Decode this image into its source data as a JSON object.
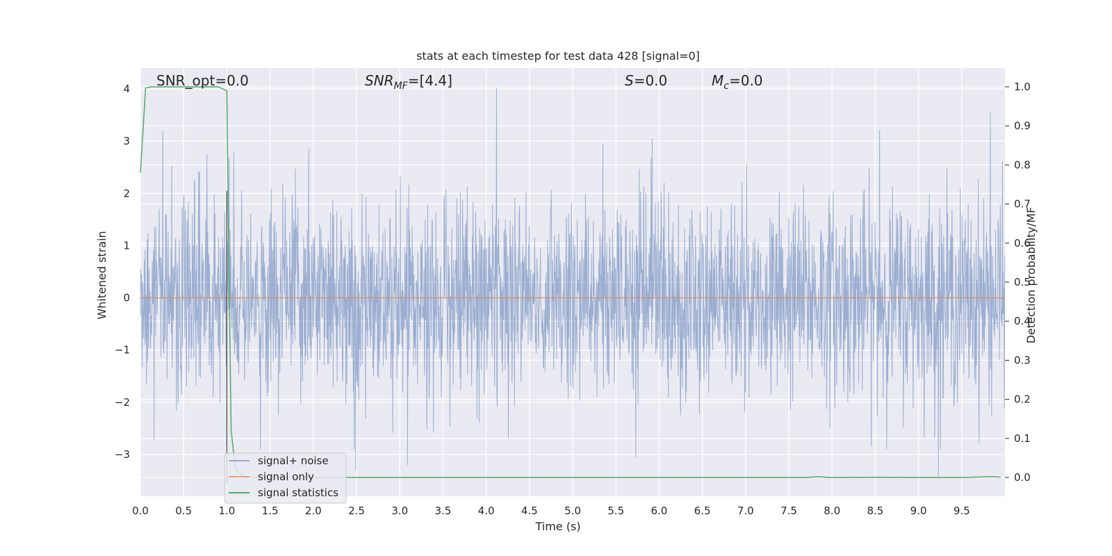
{
  "chart_data": {
    "type": "line",
    "title": "stats at each timestep for test data 428 [signal=0]",
    "xlabel": "Time (s)",
    "ylabel_left": "Whitened strain",
    "ylabel_right": "Detection probability/MF",
    "xlim": [
      0.0,
      10.0
    ],
    "ylim_left": [
      -3.8,
      4.4
    ],
    "ylim_right": [
      -0.048,
      1.048
    ],
    "xticks": [
      "0.0",
      "0.5",
      "1.0",
      "1.5",
      "2.0",
      "2.5",
      "3.0",
      "3.5",
      "4.0",
      "4.5",
      "5.0",
      "5.5",
      "6.0",
      "6.5",
      "7.0",
      "7.5",
      "8.0",
      "8.5",
      "9.0",
      "9.5"
    ],
    "yticks_left": [
      "4",
      "3",
      "2",
      "1",
      "0",
      "−1",
      "−2",
      "−3"
    ],
    "yticks_right": [
      "1.0",
      "0.9",
      "0.8",
      "0.7",
      "0.6",
      "0.5",
      "0.4",
      "0.3",
      "0.2",
      "0.1",
      "0.0"
    ],
    "grid": true,
    "legend_position": "lower-left",
    "annotations": [
      {
        "label": "SNR_opt=0.0",
        "x": 0.2
      },
      {
        "label_main": "SNR",
        "label_sub": "MF",
        "label_rest": "=[4.4]",
        "x": 2.6
      },
      {
        "label_main": "S",
        "label_rest": "=0.0",
        "x": 5.6
      },
      {
        "label_main": "M",
        "label_sub": "c",
        "label_rest": "=0.0",
        "x": 6.6
      }
    ],
    "marker_line_x": 1.0,
    "series": [
      {
        "name": "signal+ noise",
        "axis": "left",
        "color": "#4c72b0",
        "description_values": "whitened noise, roughly unit variance; prominent peaks listed",
        "peaks": [
          {
            "x": 0.26,
            "y": 3.2
          },
          {
            "x": 0.77,
            "y": 2.75
          },
          {
            "x": 1.08,
            "y": 2.8
          },
          {
            "x": 4.12,
            "y": 4.02
          },
          {
            "x": 5.35,
            "y": 2.95
          },
          {
            "x": 5.92,
            "y": 3.05
          },
          {
            "x": 8.55,
            "y": 3.22
          },
          {
            "x": 9.83,
            "y": 3.55
          },
          {
            "x": 2.49,
            "y": -3.3
          },
          {
            "x": 3.09,
            "y": -3.2
          },
          {
            "x": 5.73,
            "y": -3.05
          },
          {
            "x": 9.23,
            "y": -3.45
          }
        ]
      },
      {
        "name": "signal only",
        "axis": "left",
        "color": "#dd8452",
        "x": [
          0.0,
          10.0
        ],
        "y": [
          0.0,
          0.0
        ]
      },
      {
        "name": "signal statistics",
        "axis": "right",
        "color": "#55a868",
        "x": [
          0.0,
          0.06,
          0.12,
          0.5,
          0.9,
          1.0,
          1.02,
          1.05,
          1.1,
          1.2,
          1.3,
          2.0,
          4.0,
          7.7,
          7.85,
          7.95,
          8.5,
          9.0,
          9.5,
          9.85,
          9.95
        ],
        "y": [
          0.78,
          0.997,
          1.0,
          1.0,
          1.0,
          0.99,
          0.6,
          0.12,
          0.02,
          0.002,
          0.0,
          0.0,
          0.0,
          0.0,
          0.002,
          0.0,
          0.0005,
          0.0,
          0.0,
          0.002,
          0.001
        ]
      }
    ]
  },
  "colors": {
    "plot_background": "#eaeaf2",
    "grid": "#ffffff",
    "marker_line": "#444444"
  }
}
